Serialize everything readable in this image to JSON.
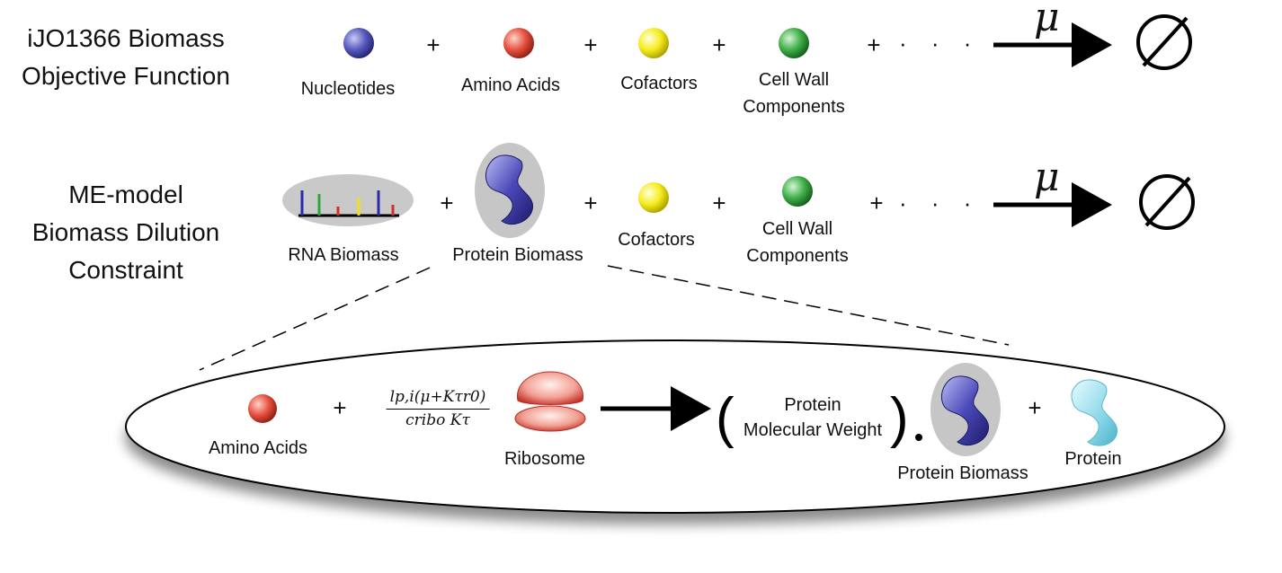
{
  "row1": {
    "title_line1": "iJO1366 Biomass",
    "title_line2": "Objective Function",
    "items": [
      "Nucleotides",
      "Amino Acids",
      "Cofactors",
      "Cell Wall",
      "Components"
    ],
    "plus": "+",
    "dots": "· · ·",
    "mu": "μ"
  },
  "row2": {
    "title_line1": "ME-model",
    "title_line2": "Biomass Dilution",
    "title_line3": "Constraint",
    "rna": "RNA Biomass",
    "protein_biomass": "Protein Biomass",
    "cofactors": "Cofactors",
    "cellwall1": "Cell Wall",
    "cellwall2": "Components",
    "plus": "+",
    "dots": "· · ·",
    "mu": "μ"
  },
  "detail": {
    "amino_acids": "Amino Acids",
    "frac_num": "lp,i(μ+Kτr0)",
    "frac_den": "cribo Kτ",
    "ribosome": "Ribosome",
    "pmw_line1": "Protein",
    "pmw_line2": "Molecular Weight",
    "protein_biomass": "Protein Biomass",
    "protein": "Protein",
    "plus": "+"
  },
  "colors": {
    "nucleotide": "#4a4db0",
    "amino_acid": "#e0483a",
    "cofactor": "#f2e81c",
    "cell_wall": "#3aa84a",
    "protein_blob": "#3d3aa6",
    "protein_light": "#7fd3e3",
    "ribosome": "#d9463f",
    "halo": "#c8c8c8"
  },
  "icons": [
    "sphere-icon",
    "rna-strand-icon",
    "protein-blob-icon",
    "ribosome-icon",
    "empty-set-icon",
    "arrow-icon"
  ]
}
